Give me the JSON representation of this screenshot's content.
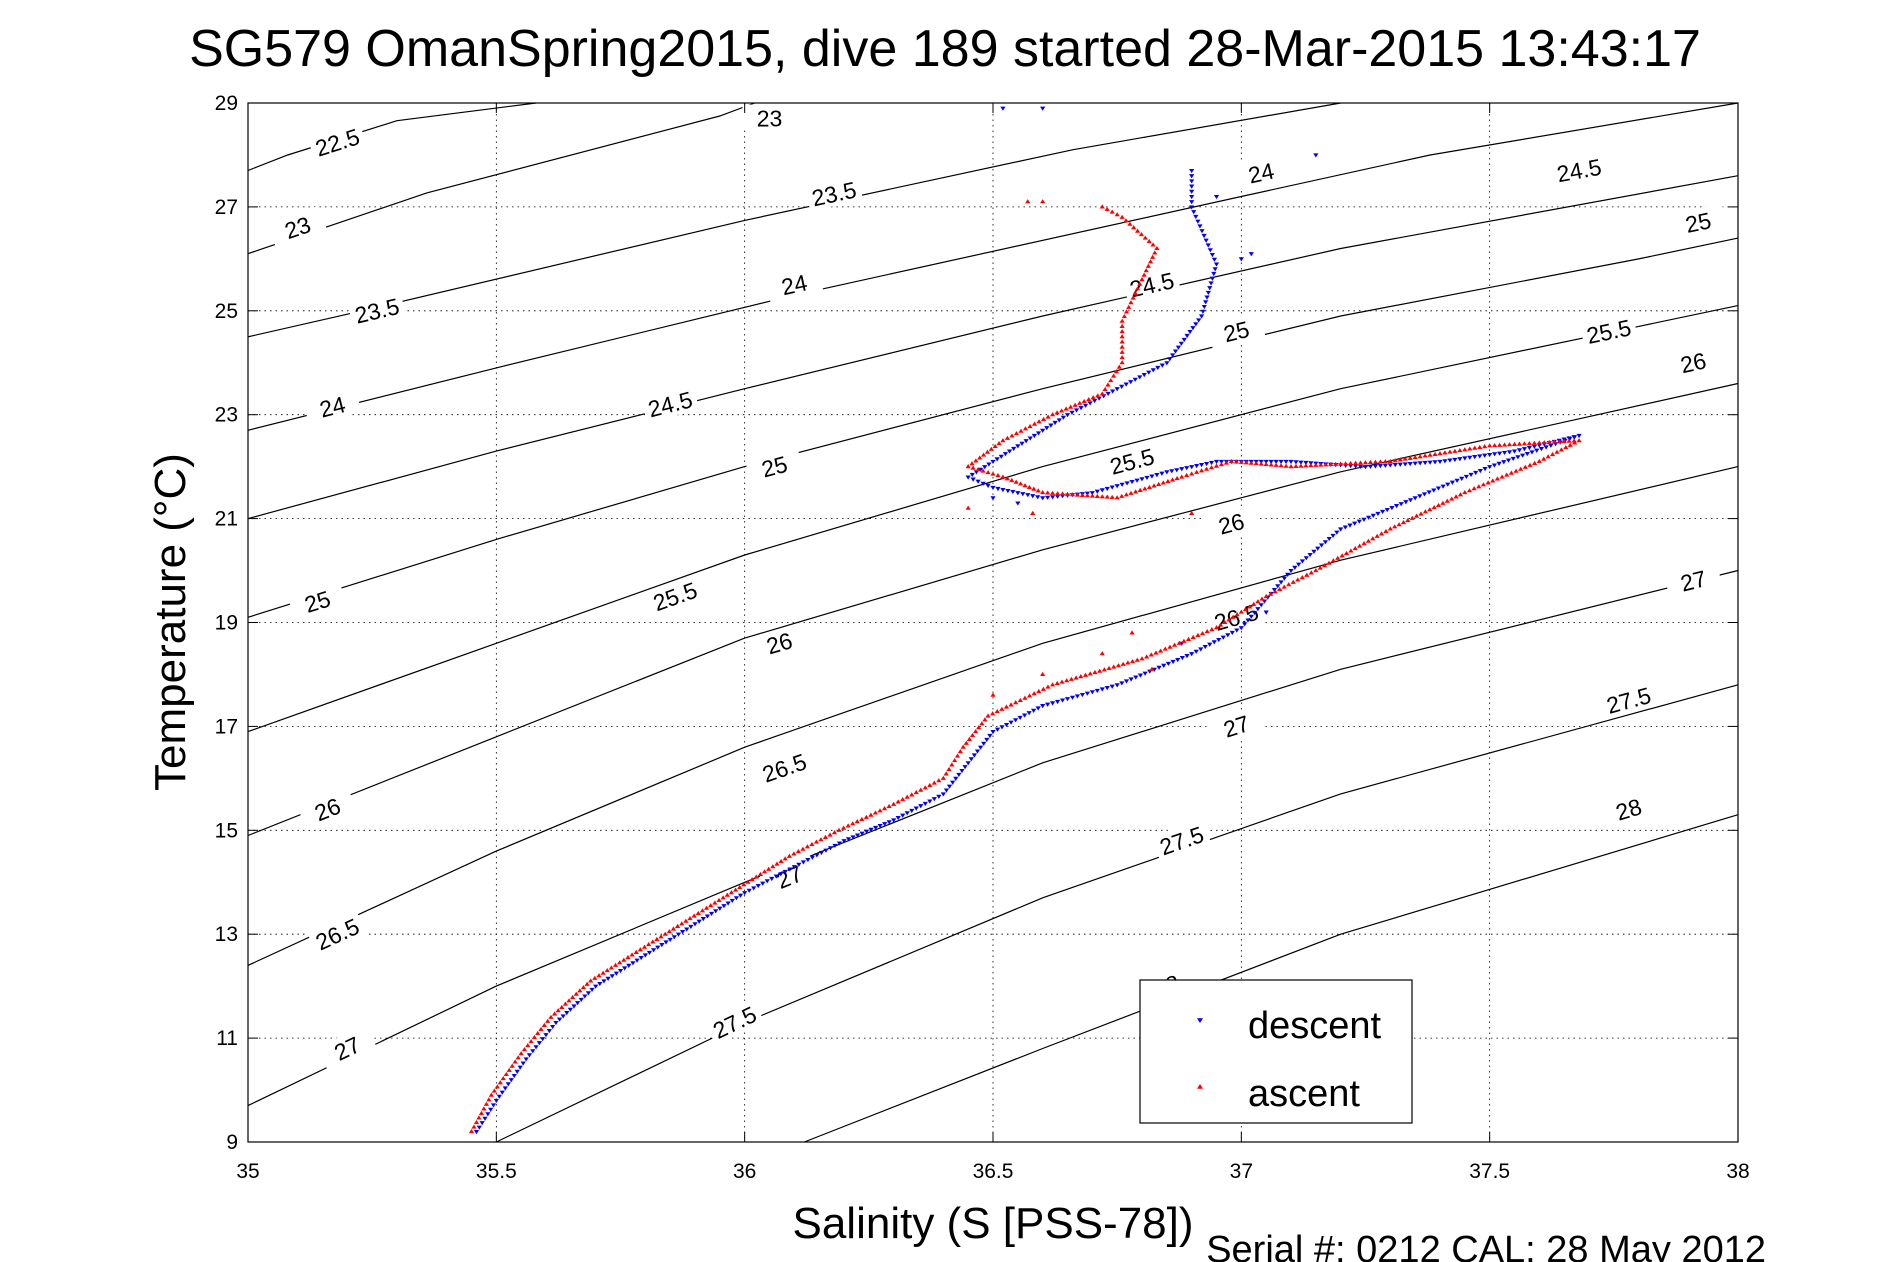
{
  "chart_data": {
    "type": "scatter",
    "title": "SG579 OmanSpring2015, dive 189 started 28-Mar-2015 13:43:17",
    "xlabel": "Salinity (S [PSS-78])",
    "ylabel": "Temperature (°C)",
    "xlim": [
      35,
      38
    ],
    "ylim": [
      9,
      29
    ],
    "x_ticks": [
      35,
      35.5,
      36,
      36.5,
      37,
      37.5,
      38
    ],
    "x_tick_labels": [
      "35",
      "35.5",
      "36",
      "36.5",
      "37",
      "37.5",
      "38"
    ],
    "y_ticks": [
      9,
      11,
      13,
      15,
      17,
      19,
      21,
      23,
      25,
      27,
      29
    ],
    "y_tick_labels": [
      "9",
      "11",
      "13",
      "15",
      "17",
      "19",
      "21",
      "23",
      "25",
      "27",
      "29"
    ],
    "grid": true,
    "legend_position": "bottom-right",
    "footer": "Serial #: 0212  CAL: 28 May 2012",
    "colors": {
      "descent": "#0000ff",
      "ascent": "#ff0000",
      "contour": "#000000"
    },
    "density_contours": [
      {
        "value": 22.5,
        "label": "22.5",
        "points": [
          [
            35.0,
            27.7
          ],
          [
            35.08,
            28.0
          ],
          [
            35.3,
            28.66
          ],
          [
            35.58,
            29.0
          ]
        ],
        "labels": [
          [
            35.18,
            28.24
          ]
        ]
      },
      {
        "value": 23,
        "label": "23",
        "points": [
          [
            35.0,
            26.1
          ],
          [
            35.36,
            27.27
          ],
          [
            35.95,
            28.75
          ],
          [
            36.02,
            29.0
          ]
        ],
        "labels": [
          [
            35.1,
            26.6
          ],
          [
            36.05,
            28.7
          ]
        ]
      },
      {
        "value": 23.5,
        "label": "23.5",
        "points": [
          [
            35.0,
            24.5
          ],
          [
            35.23,
            25.0
          ],
          [
            36.0,
            26.74
          ],
          [
            36.66,
            28.1
          ],
          [
            37.2,
            29.0
          ]
        ],
        "labels": [
          [
            35.26,
            25.0
          ],
          [
            36.18,
            27.25
          ]
        ]
      },
      {
        "value": 24,
        "label": "24",
        "points": [
          [
            35.0,
            22.7
          ],
          [
            35.5,
            23.9
          ],
          [
            36.1,
            25.3
          ],
          [
            37.0,
            27.2
          ],
          [
            37.38,
            28.0
          ],
          [
            38.0,
            29.0
          ]
        ],
        "labels": [
          [
            35.17,
            23.15
          ],
          [
            36.1,
            25.5
          ],
          [
            37.04,
            27.65
          ]
        ]
      },
      {
        "value": 24.5,
        "label": "24.5",
        "points": [
          [
            35.0,
            21.0
          ],
          [
            35.5,
            22.3
          ],
          [
            36.0,
            23.5
          ],
          [
            36.6,
            24.9
          ],
          [
            37.2,
            26.2
          ],
          [
            38.0,
            27.6
          ]
        ],
        "labels": [
          [
            35.85,
            23.2
          ],
          [
            36.82,
            25.5
          ],
          [
            37.68,
            27.7
          ]
        ]
      },
      {
        "value": 25,
        "label": "25",
        "points": [
          [
            35.0,
            19.1
          ],
          [
            35.5,
            20.6
          ],
          [
            36.0,
            22.0
          ],
          [
            36.6,
            23.5
          ],
          [
            37.2,
            24.9
          ],
          [
            37.8,
            26.0
          ],
          [
            38.0,
            26.4
          ]
        ],
        "labels": [
          [
            35.14,
            19.4
          ],
          [
            36.06,
            22.0
          ],
          [
            36.99,
            24.6
          ],
          [
            37.92,
            26.7
          ]
        ]
      },
      {
        "value": 25.5,
        "label": "25.5",
        "points": [
          [
            35.0,
            16.9
          ],
          [
            35.5,
            18.6
          ],
          [
            36.0,
            20.3
          ],
          [
            36.6,
            22.0
          ],
          [
            37.2,
            23.5
          ],
          [
            37.8,
            24.7
          ],
          [
            38.0,
            25.1
          ]
        ],
        "labels": [
          [
            35.86,
            19.5
          ],
          [
            36.78,
            22.1
          ],
          [
            37.74,
            24.6
          ]
        ]
      },
      {
        "value": 26,
        "label": "26",
        "points": [
          [
            35.0,
            14.9
          ],
          [
            35.5,
            16.8
          ],
          [
            36.0,
            18.7
          ],
          [
            36.6,
            20.4
          ],
          [
            37.2,
            21.9
          ],
          [
            38.0,
            23.6
          ]
        ],
        "labels": [
          [
            35.16,
            15.4
          ],
          [
            36.07,
            18.6
          ],
          [
            36.98,
            20.9
          ],
          [
            37.91,
            24.0
          ]
        ]
      },
      {
        "value": 26.5,
        "label": "26.5",
        "points": [
          [
            35.0,
            12.4
          ],
          [
            35.5,
            14.6
          ],
          [
            36.0,
            16.6
          ],
          [
            36.6,
            18.6
          ],
          [
            37.2,
            20.2
          ],
          [
            38.0,
            22.0
          ]
        ],
        "labels": [
          [
            35.18,
            13.0
          ],
          [
            36.08,
            16.2
          ],
          [
            36.99,
            19.1
          ]
        ]
      },
      {
        "value": 27,
        "label": "27",
        "points": [
          [
            35.0,
            9.7
          ],
          [
            35.5,
            12.0
          ],
          [
            36.0,
            14.0
          ],
          [
            36.6,
            16.3
          ],
          [
            37.2,
            18.1
          ],
          [
            38.0,
            20.0
          ]
        ],
        "labels": [
          [
            35.2,
            10.8
          ],
          [
            36.09,
            14.1
          ],
          [
            36.99,
            17.0
          ],
          [
            37.91,
            19.8
          ]
        ]
      },
      {
        "value": 27.5,
        "label": "27.5",
        "points": [
          [
            35.5,
            9.0
          ],
          [
            36.0,
            11.3
          ],
          [
            36.6,
            13.7
          ],
          [
            37.2,
            15.7
          ],
          [
            38.0,
            17.8
          ]
        ],
        "labels": [
          [
            35.98,
            11.3
          ],
          [
            36.88,
            14.8
          ],
          [
            37.78,
            17.5
          ]
        ]
      },
      {
        "value": 28,
        "label": "28",
        "points": [
          [
            36.12,
            9.0
          ],
          [
            36.6,
            10.8
          ],
          [
            37.2,
            13.0
          ],
          [
            38.0,
            15.3
          ]
        ],
        "labels": [
          [
            36.85,
            12.0
          ],
          [
            37.78,
            15.4
          ]
        ]
      }
    ],
    "series": [
      {
        "name": "descent",
        "marker": "triangle-down",
        "color": "#0000ff",
        "trace": [
          [
            35.46,
            9.2
          ],
          [
            35.5,
            9.8
          ],
          [
            35.56,
            10.6
          ],
          [
            35.62,
            11.3
          ],
          [
            35.7,
            12.0
          ],
          [
            35.8,
            12.6
          ],
          [
            35.9,
            13.2
          ],
          [
            36.0,
            13.8
          ],
          [
            36.1,
            14.3
          ],
          [
            36.2,
            14.8
          ],
          [
            36.3,
            15.2
          ],
          [
            36.4,
            15.7
          ],
          [
            36.45,
            16.3
          ],
          [
            36.5,
            16.9
          ],
          [
            36.6,
            17.4
          ],
          [
            36.75,
            17.8
          ],
          [
            36.9,
            18.4
          ],
          [
            37.0,
            18.9
          ],
          [
            37.1,
            20.0
          ],
          [
            37.2,
            20.8
          ],
          [
            37.35,
            21.4
          ],
          [
            37.5,
            22.0
          ],
          [
            37.68,
            22.6
          ],
          [
            37.55,
            22.3
          ],
          [
            37.4,
            22.1
          ],
          [
            37.25,
            22.0
          ],
          [
            37.1,
            22.1
          ],
          [
            36.95,
            22.1
          ],
          [
            36.85,
            21.9
          ],
          [
            36.7,
            21.5
          ],
          [
            36.6,
            21.4
          ],
          [
            36.5,
            21.6
          ],
          [
            36.45,
            21.8
          ],
          [
            36.55,
            22.4
          ],
          [
            36.65,
            23.0
          ],
          [
            36.75,
            23.5
          ],
          [
            36.85,
            24.0
          ],
          [
            36.92,
            24.9
          ],
          [
            36.95,
            25.9
          ],
          [
            36.9,
            27.0
          ],
          [
            36.9,
            27.7
          ]
        ],
        "scattered": [
          [
            36.52,
            28.9
          ],
          [
            36.6,
            28.9
          ],
          [
            37.15,
            28.0
          ],
          [
            37.02,
            26.1
          ],
          [
            36.95,
            27.2
          ],
          [
            37.0,
            26.0
          ],
          [
            36.5,
            21.4
          ],
          [
            36.55,
            21.3
          ],
          [
            37.05,
            19.2
          ],
          [
            36.88,
            18.6
          ]
        ]
      },
      {
        "name": "ascent",
        "marker": "triangle-up",
        "color": "#ff0000",
        "trace": [
          [
            35.45,
            9.2
          ],
          [
            35.49,
            9.9
          ],
          [
            35.55,
            10.7
          ],
          [
            35.61,
            11.4
          ],
          [
            35.69,
            12.1
          ],
          [
            35.79,
            12.7
          ],
          [
            35.89,
            13.3
          ],
          [
            35.99,
            13.9
          ],
          [
            36.09,
            14.5
          ],
          [
            36.19,
            15.0
          ],
          [
            36.3,
            15.5
          ],
          [
            36.4,
            16.0
          ],
          [
            36.44,
            16.6
          ],
          [
            36.49,
            17.2
          ],
          [
            36.62,
            17.8
          ],
          [
            36.8,
            18.3
          ],
          [
            36.95,
            18.9
          ],
          [
            37.05,
            19.5
          ],
          [
            37.15,
            20.0
          ],
          [
            37.3,
            20.8
          ],
          [
            37.45,
            21.5
          ],
          [
            37.6,
            22.1
          ],
          [
            37.68,
            22.5
          ],
          [
            37.5,
            22.4
          ],
          [
            37.3,
            22.1
          ],
          [
            37.1,
            22.0
          ],
          [
            36.98,
            22.1
          ],
          [
            36.88,
            21.8
          ],
          [
            36.75,
            21.4
          ],
          [
            36.6,
            21.5
          ],
          [
            36.52,
            21.8
          ],
          [
            36.45,
            22.0
          ],
          [
            36.52,
            22.5
          ],
          [
            36.62,
            23.0
          ],
          [
            36.72,
            23.4
          ],
          [
            36.76,
            24.0
          ],
          [
            36.76,
            24.8
          ],
          [
            36.8,
            25.6
          ],
          [
            36.83,
            26.2
          ],
          [
            36.76,
            26.8
          ],
          [
            36.72,
            27.0
          ]
        ],
        "scattered": [
          [
            36.57,
            27.1
          ],
          [
            36.6,
            27.1
          ],
          [
            36.45,
            21.2
          ],
          [
            36.58,
            21.1
          ],
          [
            36.9,
            21.1
          ],
          [
            36.78,
            18.8
          ],
          [
            36.72,
            18.4
          ],
          [
            36.6,
            18.0
          ],
          [
            36.5,
            17.6
          ],
          [
            36.82,
            18.1
          ]
        ]
      }
    ]
  }
}
